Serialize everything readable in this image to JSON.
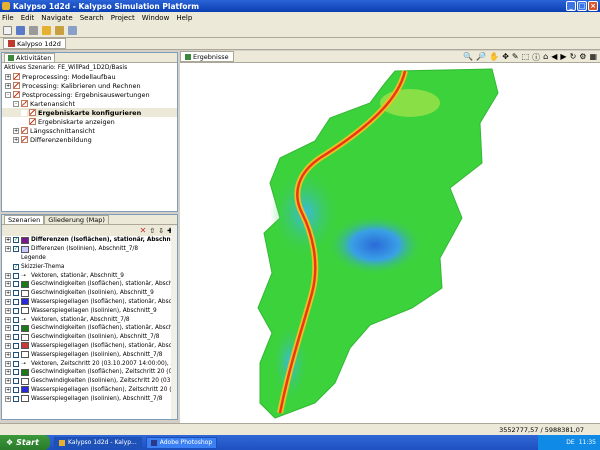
{
  "window": {
    "title": "Kalypso 1d2d - Kalypso Simulation Platform"
  },
  "menu": [
    "File",
    "Edit",
    "Navigate",
    "Search",
    "Project",
    "Window",
    "Help"
  ],
  "editor": {
    "tab_label": "Kalypso 1d2d"
  },
  "activities": {
    "tab_label": "Aktivitäten",
    "active_scenario": "Aktives Szenario: FE_WillPad_1D2D/Basis",
    "items": [
      {
        "label": "Preprocessing: Modellaufbau",
        "level": 0,
        "expander": "+"
      },
      {
        "label": "Processing: Kalibrieren und Rechnen",
        "level": 0,
        "expander": "+"
      },
      {
        "label": "Postprocessing: Ergebnisauswertungen",
        "level": 0,
        "expander": "-"
      },
      {
        "label": "Kartenansicht",
        "level": 1,
        "expander": "-"
      },
      {
        "label": "Ergebniskarte konfigurieren",
        "level": 2,
        "expander": "",
        "selected": true
      },
      {
        "label": "Ergebniskarte anzeigen",
        "level": 2,
        "expander": ""
      },
      {
        "label": "Längsschnittansicht",
        "level": 1,
        "expander": "+"
      },
      {
        "label": "Differenzenbildung",
        "level": 1,
        "expander": "+"
      }
    ]
  },
  "bottom_panel": {
    "tabs": [
      "Szenarien",
      "Gliederung (Map)"
    ],
    "themes": [
      {
        "label": "Differenzen (Isoflächen), stationär, Abschnitt",
        "checked": true,
        "bold": true,
        "swatch": "#7a1a8a",
        "expander": true
      },
      {
        "label": "Differenzen (Isolinien), Abschnitt_7/8",
        "checked": true,
        "swatch": "#c8c8ff",
        "expander": true
      },
      {
        "label": "Legende",
        "checked": false,
        "swatch": "",
        "expander": false,
        "nobox": true
      },
      {
        "label": "Skizzier-Thema",
        "checked": true,
        "swatch": "",
        "expander": false
      },
      {
        "label": "Vektoren, stationär, Abschnitt_9",
        "checked": false,
        "swatch": "arrow",
        "expander": true
      },
      {
        "label": "Geschwindigkeiten (Isoflächen), stationär, Abschnitt",
        "checked": false,
        "swatch": "#1a7a1a",
        "expander": true
      },
      {
        "label": "Geschwindigkeiten (Isolinien), Abschnitt_9",
        "checked": false,
        "swatch": "#ffffff",
        "expander": true
      },
      {
        "label": "Wasserspiegellagen (Isoflächen), stationär, Abschnitt",
        "checked": false,
        "swatch": "#2a2ad8",
        "expander": true
      },
      {
        "label": "Wasserspiegellagen (Isolinien), Abschnitt_9",
        "checked": false,
        "swatch": "#ffffff",
        "expander": true
      },
      {
        "label": "Vektoren, stationär, Abschnitt_7/8",
        "checked": false,
        "swatch": "arrow",
        "expander": true
      },
      {
        "label": "Geschwindigkeiten (Isoflächen), stationär, Abschnitt",
        "checked": false,
        "swatch": "#1a7a1a",
        "expander": true
      },
      {
        "label": "Geschwindigkeiten (Isolinien), Abschnitt_7/8",
        "checked": false,
        "swatch": "#ffffff",
        "expander": true
      },
      {
        "label": "Wasserspiegellagen (Isoflächen), stationär, Abschnitt",
        "checked": false,
        "swatch": "#c83a3a",
        "expander": true
      },
      {
        "label": "Wasserspiegellagen (Isolinien), Abschnitt_7/8",
        "checked": false,
        "swatch": "#ffffff",
        "expander": true
      },
      {
        "label": "Vektoren, Zeitschritt 20 (03.10.2007 14:00:00), Ab",
        "checked": false,
        "swatch": "arrow",
        "expander": true
      },
      {
        "label": "Geschwindigkeiten (Isoflächen), Zeitschritt 20 (03.10",
        "checked": false,
        "swatch": "#1a7a1a",
        "expander": true
      },
      {
        "label": "Geschwindigkeiten (Isolinien), Zeitschritt 20 (03.10.2",
        "checked": false,
        "swatch": "#ffffff",
        "expander": true
      },
      {
        "label": "Wasserspiegellagen (Isoflächen), Zeitschritt 20 (03.1",
        "checked": false,
        "swatch": "#2a2ad8",
        "expander": true
      },
      {
        "label": "Wasserspiegellagen (Isolinien), Abschnitt_7/8",
        "checked": false,
        "swatch": "#ffffff",
        "expander": true
      }
    ]
  },
  "map": {
    "tab_label": "Ergebnisse"
  },
  "status": {
    "coordinates": "3552777,57 / 5988381,07"
  },
  "taskbar": {
    "start_label": "Start",
    "items": [
      "Kalypso 1d2d - Kalyp...",
      "Adobe Photoshop"
    ],
    "tray_lang": "DE",
    "clock": "11:35"
  },
  "colors": {
    "titlebar": "#0b3fb3",
    "panel_bg": "#ece9d8",
    "start_green": "#2a7a2a",
    "map_green": "#3cd23c",
    "map_blue": "#3aa0e6",
    "river_red": "#e83a1a"
  }
}
